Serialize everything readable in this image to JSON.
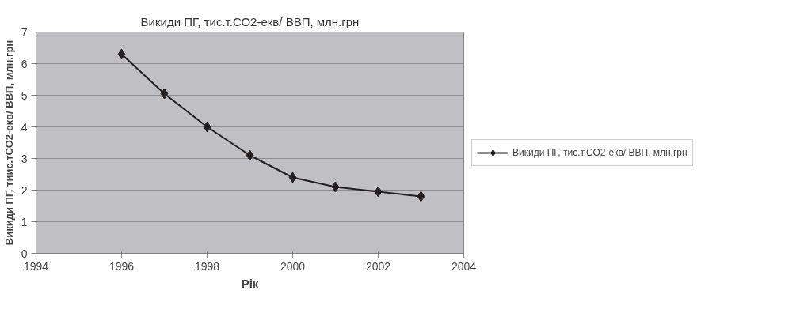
{
  "chart_data": {
    "type": "line",
    "title": "Викиди ПГ, тис.т.СО2-екв/ ВВП, млн.грн",
    "xlabel": "Рік",
    "ylabel": "Викиди ПГ, тиис.тСО2-екв/ ВВП, млн.грн",
    "x": [
      1996,
      1997,
      1998,
      1999,
      2000,
      2001,
      2002,
      2003
    ],
    "series": [
      {
        "name": "Викиди ПГ, тис.т.СО2-екв/ ВВП, млн.грн",
        "color": "#231f20",
        "values": [
          6.3,
          5.05,
          4.0,
          3.1,
          2.4,
          2.1,
          1.95,
          1.8
        ]
      }
    ],
    "xlim": [
      1994,
      2004
    ],
    "xticks": [
      1994,
      1996,
      1998,
      2000,
      2002,
      2004
    ],
    "ylim": [
      0,
      7
    ],
    "yticks": [
      0,
      1,
      2,
      3,
      4,
      5,
      6,
      7
    ],
    "grid": "y",
    "legend": "right",
    "marker": "diamond",
    "line_style": "solid"
  }
}
